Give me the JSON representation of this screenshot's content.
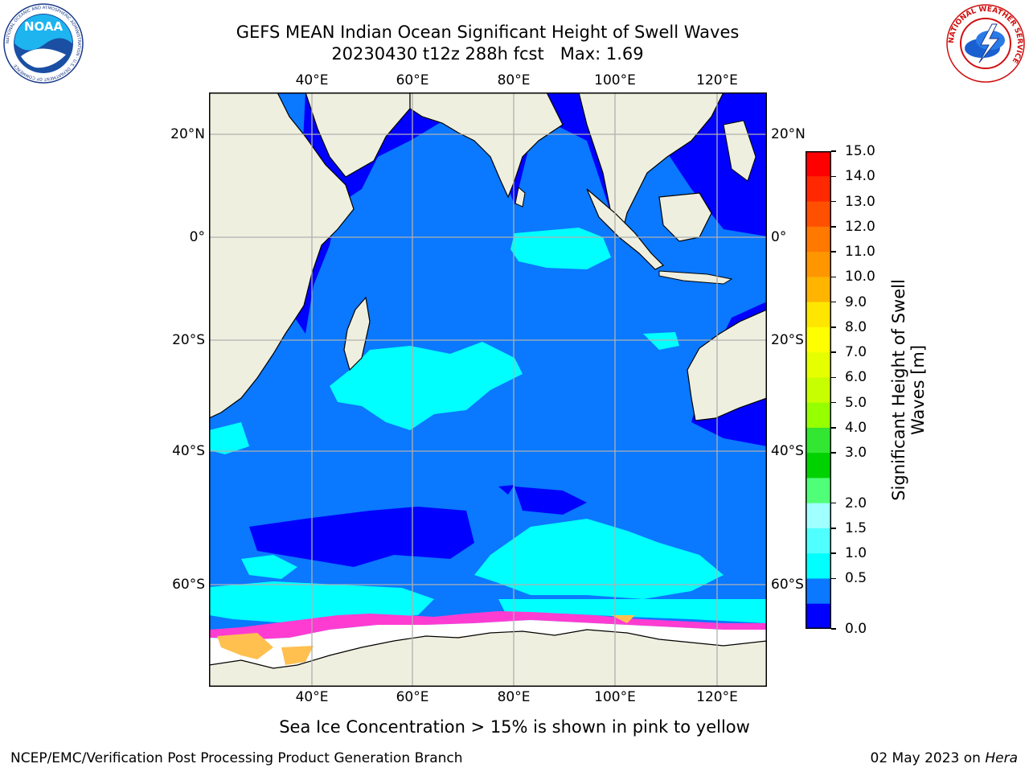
{
  "title": {
    "line1": "GEFS MEAN Indian Ocean Significant Height of Swell Waves",
    "line2": "20230430 t12z 288h fcst   Max: 1.69"
  },
  "logos": {
    "left": {
      "text": "NOAA",
      "ring_text": "NATIONAL OCEANIC AND ATMOSPHERIC ADMINISTRATION · U.S. DEPARTMENT OF COMMERCE"
    },
    "right": {
      "ring_text": "NATIONAL WEATHER SERVICE"
    }
  },
  "map": {
    "lon_labels": [
      "40°E",
      "60°E",
      "80°E",
      "100°E",
      "120°E"
    ],
    "lat_labels_left": [
      "20°N",
      "0°",
      "20°S",
      "40°S",
      "60°S"
    ],
    "lat_labels_right": [
      "20°N",
      "0°",
      "20°S",
      "40°S",
      "60°S"
    ],
    "colors": {
      "land": "#efefdf",
      "grid": "#b0b0b0",
      "band_0_0_5": "#0000ff",
      "band_0_5_1": "#0a78ff",
      "band_1_1_5": "#00ffff",
      "band_1_5_2": "#50ffff",
      "sea_ice_pink": "#ff3cd2",
      "sea_ice_yellow": "#ffc050"
    }
  },
  "colorbar": {
    "title": "Significant Height of Swell\nWaves [m]",
    "ticks": [
      "15.0",
      "14.0",
      "13.0",
      "12.0",
      "11.0",
      "10.0",
      "9.0",
      "8.0",
      "7.0",
      "6.0",
      "5.0",
      "4.0",
      "3.0",
      "2.0",
      "1.5",
      "1.0",
      "0.5",
      "0.0"
    ],
    "colors_top_to_bottom": [
      "#ff0000",
      "#ff2800",
      "#ff5000",
      "#ff7800",
      "#ff9600",
      "#ffb400",
      "#ffe600",
      "#ffff00",
      "#e6ff00",
      "#c8ff00",
      "#96ff00",
      "#32e632",
      "#00d200",
      "#50ff78",
      "#a0ffff",
      "#50ffff",
      "#00ffff",
      "#0a78ff",
      "#0000ff"
    ]
  },
  "caption": "Sea Ice Concentration > 15% is shown in pink to yellow",
  "footer": {
    "left": "NCEP/EMC/Verification Post Processing Product Generation Branch",
    "right_prefix": "02 May 2023 on ",
    "right_italic": "Hera"
  }
}
